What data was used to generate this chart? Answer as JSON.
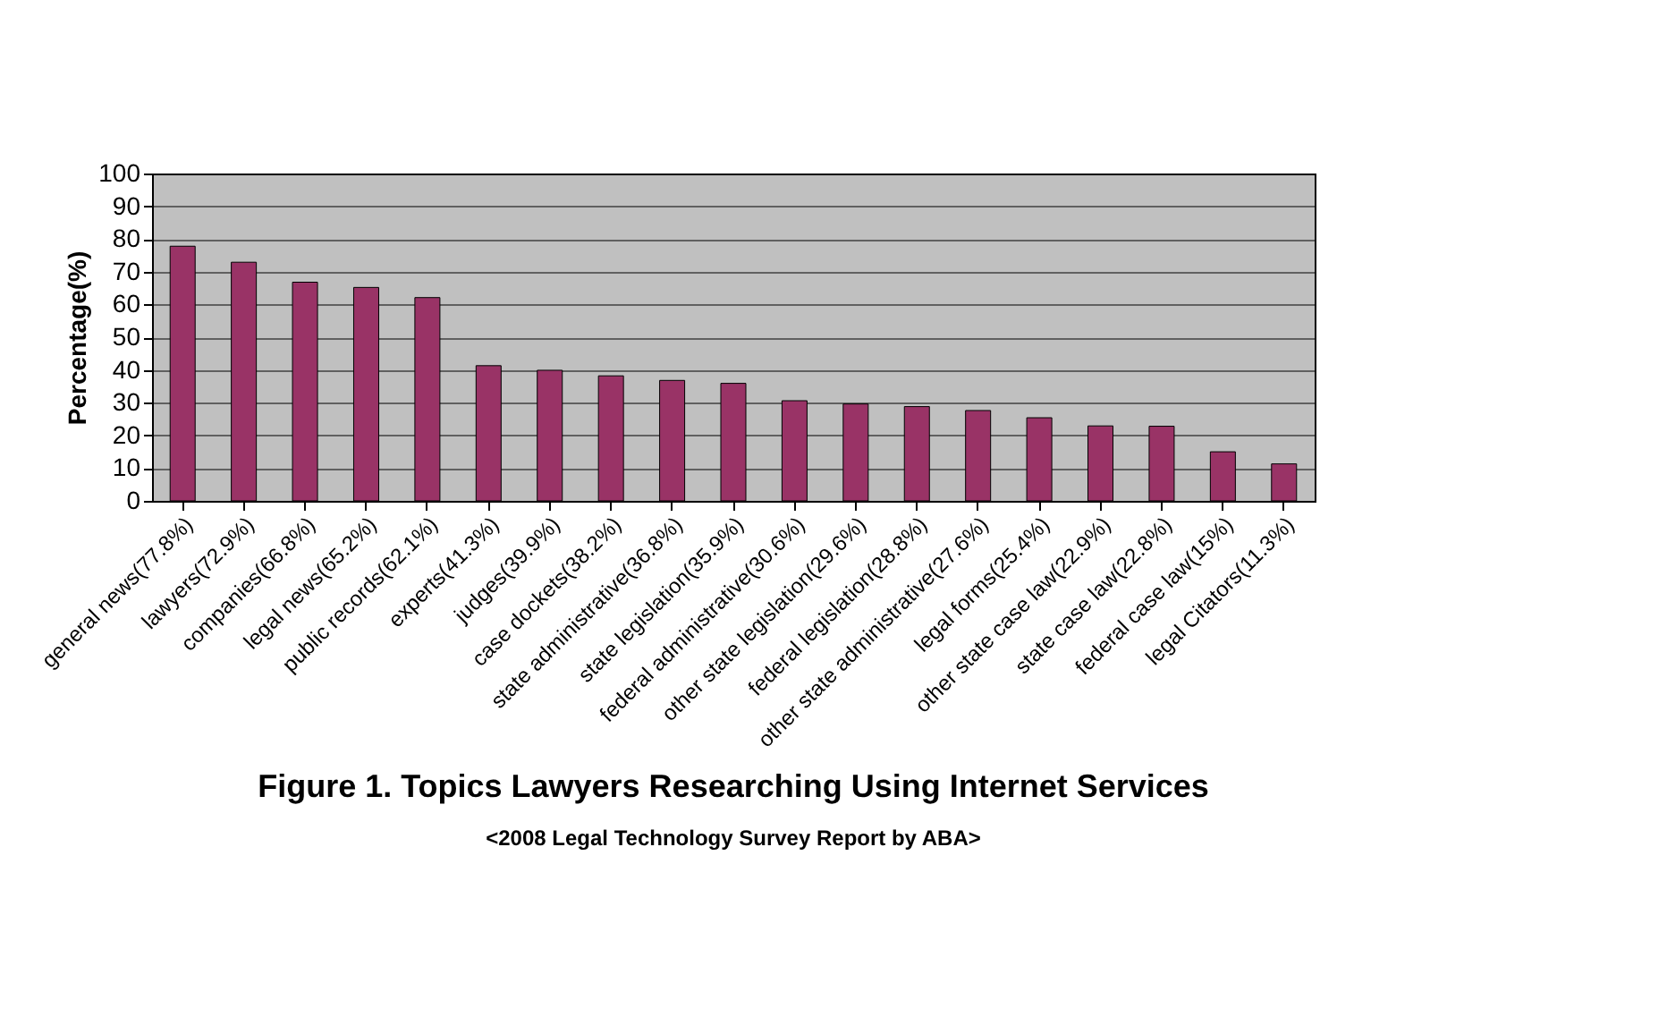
{
  "chart_data": {
    "type": "bar",
    "title": "Figure 1. Topics Lawyers Researching Using Internet Services",
    "annotations": [
      "<2008 Legal Technology Survey Report by ABA>"
    ],
    "ylabel": "Percentage(%)",
    "categories": [
      "general news(77.8%)",
      "lawyers(72.9%)",
      "companies(66.8%)",
      "legal news(65.2%)",
      "public records(62.1%)",
      "experts(41.3%)",
      "judges(39.9%)",
      "case dockets(38.2%)",
      "state administrative(36.8%)",
      "state legislation(35.9%)",
      "federal administrative(30.6%)",
      "other state legislation(29.6%)",
      "federal legislation(28.8%)",
      "other state administrative(27.6%)",
      "legal forms(25.4%)",
      "other state case law(22.9%)",
      "state case law(22.8%)",
      "federal case law(15%)",
      "legal Citators(11.3%)"
    ],
    "values": [
      77.8,
      72.9,
      66.8,
      65.2,
      62.1,
      41.3,
      39.9,
      38.2,
      36.8,
      35.9,
      30.6,
      29.6,
      28.8,
      27.6,
      25.4,
      22.9,
      22.8,
      15,
      11.3
    ],
    "color": "#993366",
    "ylim": [
      0,
      100
    ],
    "yticks": [
      0,
      10,
      20,
      30,
      40,
      50,
      60,
      70,
      80,
      90,
      100
    ],
    "grid": "y"
  }
}
